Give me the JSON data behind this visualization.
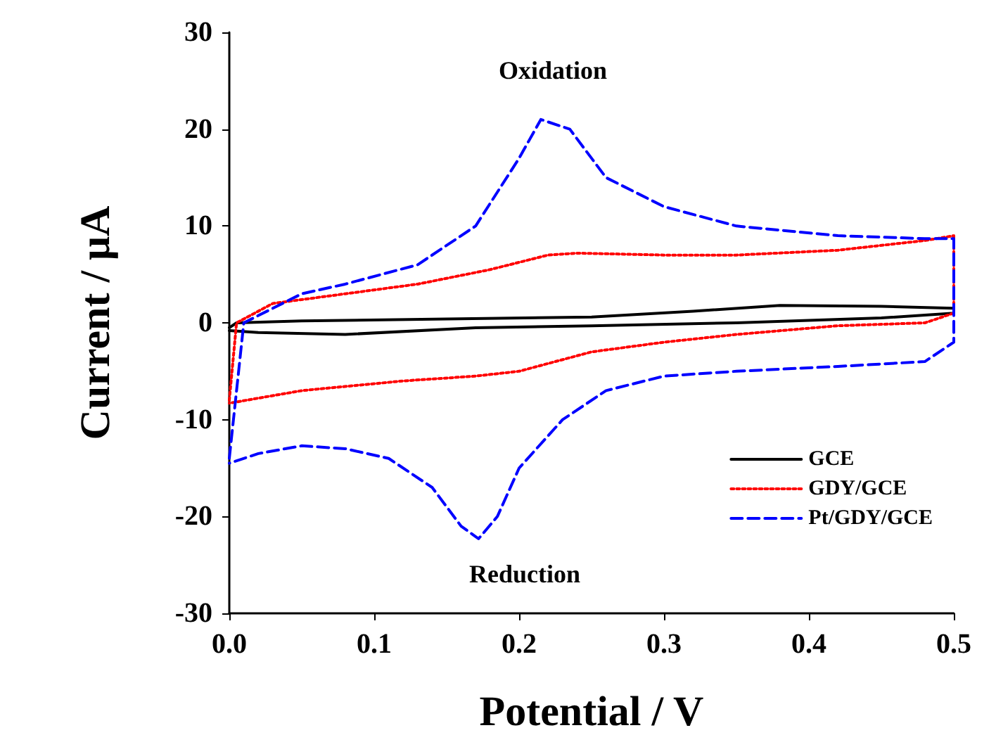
{
  "chart_data": {
    "type": "line",
    "xlabel": "Potential / V",
    "ylabel": "Current / μA",
    "xlim": [
      0,
      0.5
    ],
    "ylim": [
      -30,
      30
    ],
    "xticks": [
      {
        "value": 0,
        "label": "0.0"
      },
      {
        "value": 0.1,
        "label": "0.1"
      },
      {
        "value": 0.2,
        "label": "0.2"
      },
      {
        "value": 0.3,
        "label": "0.3"
      },
      {
        "value": 0.4,
        "label": "0.4"
      },
      {
        "value": 0.5,
        "label": "0.5"
      }
    ],
    "yticks": [
      -30,
      -20,
      -10,
      0,
      10,
      20,
      30
    ],
    "grid": false,
    "legend": "bottom right",
    "marker": "none",
    "annotations": [
      "Oxidation",
      "Reduction"
    ],
    "series": [
      {
        "name": "GCE",
        "color": "#000000",
        "line_style": "solid",
        "x": [
          0,
          0.005,
          0.05,
          0.15,
          0.25,
          0.32,
          0.38,
          0.45,
          0.5,
          0.5,
          0.45,
          0.35,
          0.25,
          0.17,
          0.08,
          0.02,
          0
        ],
        "values": [
          -0.5,
          0,
          0.2,
          0.4,
          0.6,
          1.2,
          1.8,
          1.7,
          1.5,
          1,
          0.5,
          0,
          -0.3,
          -0.5,
          -1.2,
          -1,
          -0.8
        ]
      },
      {
        "name": "GDY/GCE",
        "color": "#ff0000",
        "line_style": "dotted",
        "x": [
          0,
          0.005,
          0.03,
          0.08,
          0.13,
          0.18,
          0.22,
          0.24,
          0.3,
          0.35,
          0.42,
          0.48,
          0.5,
          0.5,
          0.48,
          0.42,
          0.35,
          0.3,
          0.25,
          0.2,
          0.17,
          0.12,
          0.05,
          0
        ],
        "values": [
          -8,
          0,
          2,
          3,
          4,
          5.5,
          7,
          7.2,
          7,
          7,
          7.5,
          8.5,
          9,
          1,
          0,
          -0.3,
          -1.2,
          -2,
          -3,
          -5,
          -5.5,
          -6,
          -7,
          -8.3
        ]
      },
      {
        "name": "Pt/GDY/GCE",
        "color": "#0000ff",
        "line_style": "dashed",
        "x": [
          0,
          0.01,
          0.05,
          0.08,
          0.13,
          0.17,
          0.2,
          0.215,
          0.235,
          0.26,
          0.3,
          0.35,
          0.42,
          0.48,
          0.5,
          0.5,
          0.48,
          0.42,
          0.35,
          0.3,
          0.26,
          0.23,
          0.2,
          0.185,
          0.172,
          0.16,
          0.14,
          0.11,
          0.08,
          0.05,
          0.02,
          0
        ],
        "values": [
          -14,
          0,
          3,
          4,
          6,
          10,
          17,
          21,
          20,
          15,
          12,
          10,
          9,
          8.7,
          8.7,
          -2,
          -4,
          -4.5,
          -5,
          -5.5,
          -7,
          -10,
          -15,
          -20,
          -22.3,
          -21,
          -17,
          -14,
          -13,
          -12.7,
          -13.5,
          -14.5
        ]
      }
    ]
  }
}
